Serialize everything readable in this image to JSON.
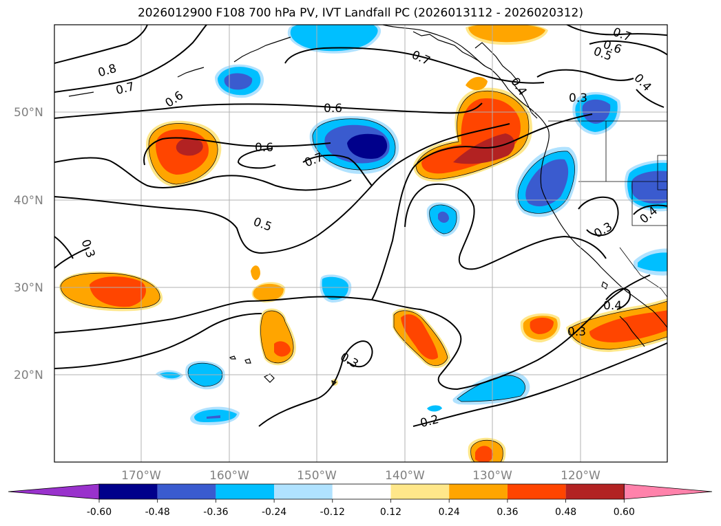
{
  "title": "2026012900 F108 700 hPa PV, IVT Landfall PC (2026013112 - 2026020312)",
  "map": {
    "lat_labels": [
      "50°N",
      "40°N",
      "30°N",
      "20°N"
    ],
    "lon_labels": [
      "170°W",
      "160°W",
      "150°W",
      "140°W",
      "130°W",
      "120°W"
    ],
    "contour_labels": [
      "0.8",
      "0.7",
      "0.6",
      "0.6",
      "0.6",
      "0.7",
      "0.5",
      "0.3",
      "0.7",
      "0.7",
      "0.6",
      "0.5",
      "0.4",
      "0.4",
      "0.3",
      "0.3",
      "0.4",
      "0.4",
      "0.3",
      "0.3",
      "0.2"
    ]
  },
  "colorbar": {
    "levels": [
      "-0.60",
      "-0.48",
      "-0.36",
      "-0.24",
      "-0.12",
      "0.12",
      "0.24",
      "0.36",
      "0.48",
      "0.60"
    ],
    "colors": [
      "#9932cc",
      "#00008b",
      "#3a5bcf",
      "#00bfff",
      "#b0e2ff",
      "#ffffff",
      "#ffe78a",
      "#ffa500",
      "#ff4500",
      "#b22222",
      "#ff82ab"
    ]
  }
}
